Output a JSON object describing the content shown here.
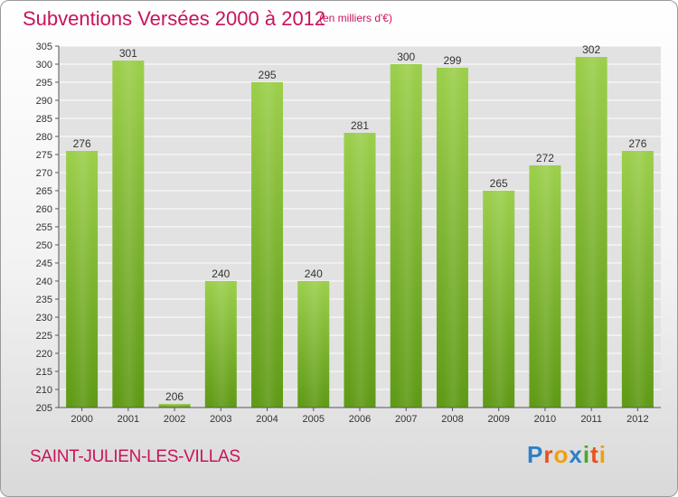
{
  "header": {
    "title": "Subventions Versées 2000 à 2012",
    "subtitle": "(en milliers d'€)"
  },
  "footer": {
    "commune": "SAINT-JULIEN-LES-VILLAS",
    "logo": "Proxiti"
  },
  "colors": {
    "accent": "#c8135c",
    "bar_light": "#9ccf4c",
    "bar_dark": "#5f9a16"
  },
  "chart_data": {
    "type": "bar",
    "title": "Subventions Versées 2000 à 2012",
    "subtitle": "(en milliers d'€)",
    "categories": [
      "2000",
      "2001",
      "2002",
      "2003",
      "2004",
      "2005",
      "2006",
      "2007",
      "2008",
      "2009",
      "2010",
      "2011",
      "2012"
    ],
    "values": [
      276,
      301,
      206,
      240,
      295,
      240,
      281,
      300,
      299,
      265,
      272,
      302,
      276
    ],
    "xlabel": "",
    "ylabel": "",
    "ylim": [
      205,
      305
    ],
    "yticks": [
      205,
      210,
      215,
      220,
      225,
      230,
      235,
      240,
      245,
      250,
      255,
      260,
      265,
      270,
      275,
      280,
      285,
      290,
      295,
      300,
      305
    ],
    "grid": true
  }
}
